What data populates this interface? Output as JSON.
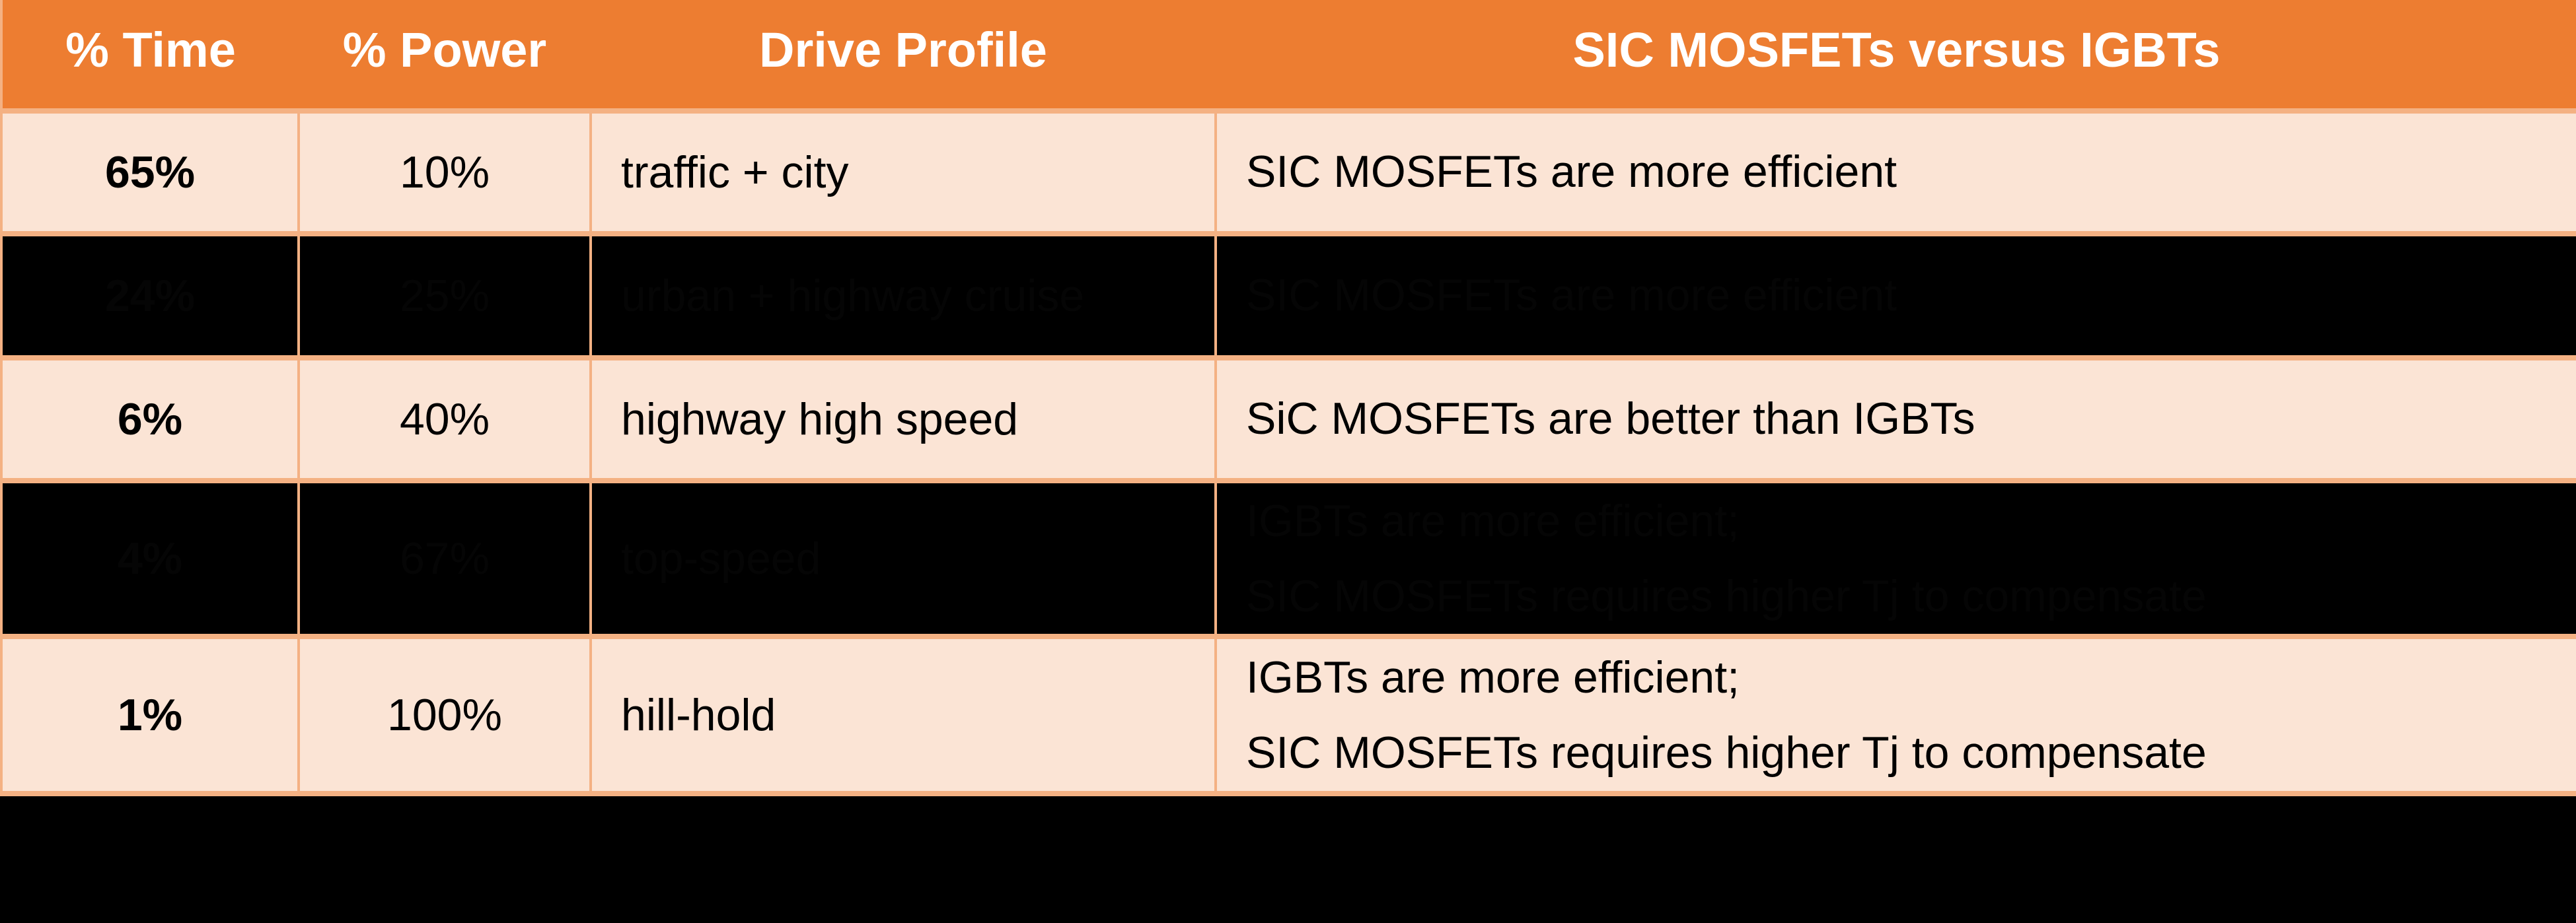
{
  "colors": {
    "header_bg": "#ED7D31",
    "header_text": "#FFFFFF",
    "row_light_bg": "#FBE4D5",
    "row_dark_bg": "#000000",
    "border": "#F4B183",
    "body_text": "#000000"
  },
  "table": {
    "headers": [
      "% Time",
      "% Power",
      "Drive Profile",
      "SIC MOSFETs versus IGBTs"
    ],
    "rows": [
      {
        "time": "65%",
        "power": "10%",
        "profile": "traffic + city",
        "comparison": [
          "SIC MOSFETs are more efficient"
        ],
        "style": "light"
      },
      {
        "time": "24%",
        "power": "25%",
        "profile": "urban + highway cruise",
        "comparison": [
          "SIC MOSFETs are more efficient"
        ],
        "style": "dark"
      },
      {
        "time": "6%",
        "power": "40%",
        "profile": "highway high speed",
        "comparison": [
          "SiC MOSFETs are better than IGBTs"
        ],
        "style": "light"
      },
      {
        "time": "4%",
        "power": "67%",
        "profile": "top-speed",
        "comparison": [
          "IGBTs are more efficient;",
          "SIC MOSFETs requires higher Tj to compensate"
        ],
        "style": "dark"
      },
      {
        "time": "1%",
        "power": "100%",
        "profile": "hill-hold",
        "comparison": [
          "IGBTs are more efficient;",
          "SIC MOSFETs requires higher Tj to compensate"
        ],
        "style": "light"
      }
    ]
  }
}
